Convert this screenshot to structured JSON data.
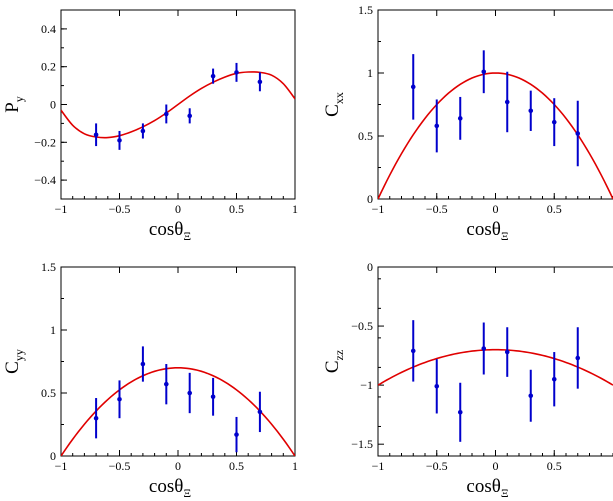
{
  "chart_data": [
    {
      "id": "py",
      "type": "scatter",
      "ylabel": "P",
      "ylabel_sub": "y",
      "xlabel": "cosθ",
      "xlabel_sub": "Ξ",
      "xlim": [
        -1,
        1
      ],
      "ylim": [
        -0.5,
        0.5
      ],
      "xticks": [
        -1,
        -0.5,
        0,
        0.5,
        1
      ],
      "xtick_labels": [
        "−1",
        "−0.5",
        "0",
        "0.5",
        "1"
      ],
      "yticks": [
        -0.4,
        -0.2,
        0,
        0.2,
        0.4
      ],
      "ytick_labels": [
        "−0.4",
        "−0.2",
        "0",
        "0.2",
        "0.4"
      ],
      "points": [
        {
          "x": -0.7,
          "y": -0.16,
          "err": 0.06
        },
        {
          "x": -0.5,
          "y": -0.19,
          "err": 0.05
        },
        {
          "x": -0.3,
          "y": -0.14,
          "err": 0.04
        },
        {
          "x": -0.1,
          "y": -0.05,
          "err": 0.05
        },
        {
          "x": 0.1,
          "y": -0.06,
          "err": 0.04
        },
        {
          "x": 0.3,
          "y": 0.15,
          "err": 0.04
        },
        {
          "x": 0.5,
          "y": 0.17,
          "err": 0.05
        },
        {
          "x": 0.7,
          "y": 0.12,
          "err": 0.05
        }
      ],
      "curve_samples": {
        "x": [
          -1,
          -0.9,
          -0.8,
          -0.7,
          -0.6,
          -0.5,
          -0.4,
          -0.3,
          -0.2,
          -0.1,
          0,
          0.1,
          0.2,
          0.3,
          0.4,
          0.5,
          0.6,
          0.7,
          0.8,
          0.9,
          1
        ],
        "y": [
          -0.03,
          -0.11,
          -0.155,
          -0.172,
          -0.175,
          -0.165,
          -0.145,
          -0.118,
          -0.085,
          -0.045,
          0,
          0.045,
          0.085,
          0.118,
          0.145,
          0.165,
          0.172,
          0.17,
          0.155,
          0.11,
          0.03
        ]
      }
    },
    {
      "id": "cxx",
      "type": "scatter",
      "ylabel": "C",
      "ylabel_sub": "xx",
      "xlabel": "cosθ",
      "xlabel_sub": "Ξ",
      "xlim": [
        -1,
        1
      ],
      "ylim": [
        0,
        1.5
      ],
      "xticks": [
        -1,
        -0.5,
        0,
        0.5
      ],
      "xtick_labels": [
        "−1",
        "−0.5",
        "0",
        "0.5"
      ],
      "yticks": [
        0,
        0.5,
        1,
        1.5
      ],
      "ytick_labels": [
        "0",
        "0.5",
        "1",
        "1.5"
      ],
      "points": [
        {
          "x": -0.7,
          "y": 0.89,
          "err": 0.26
        },
        {
          "x": -0.5,
          "y": 0.58,
          "err": 0.21
        },
        {
          "x": -0.3,
          "y": 0.64,
          "err": 0.17
        },
        {
          "x": -0.1,
          "y": 1.01,
          "err": 0.17
        },
        {
          "x": 0.1,
          "y": 0.77,
          "err": 0.24
        },
        {
          "x": 0.3,
          "y": 0.7,
          "err": 0.16
        },
        {
          "x": 0.5,
          "y": 0.61,
          "err": 0.19
        },
        {
          "x": 0.7,
          "y": 0.52,
          "err": 0.26
        }
      ],
      "curve": {
        "form": "a*(1-x^2)",
        "a": 1.0
      }
    },
    {
      "id": "cyy",
      "type": "scatter",
      "ylabel": "C",
      "ylabel_sub": "yy",
      "xlabel": "cosθ",
      "xlabel_sub": "Ξ",
      "xlim": [
        -1,
        1
      ],
      "ylim": [
        0,
        1.5
      ],
      "xticks": [
        -1,
        -0.5,
        0,
        0.5,
        1
      ],
      "xtick_labels": [
        "−1",
        "−0.5",
        "0",
        "0.5",
        "1"
      ],
      "yticks": [
        0,
        0.5,
        1,
        1.5
      ],
      "ytick_labels": [
        "0",
        "0.5",
        "1",
        "1.5"
      ],
      "points": [
        {
          "x": -0.7,
          "y": 0.3,
          "err": 0.16
        },
        {
          "x": -0.5,
          "y": 0.45,
          "err": 0.15
        },
        {
          "x": -0.3,
          "y": 0.73,
          "err": 0.14
        },
        {
          "x": -0.1,
          "y": 0.57,
          "err": 0.16
        },
        {
          "x": 0.1,
          "y": 0.5,
          "err": 0.16
        },
        {
          "x": 0.3,
          "y": 0.47,
          "err": 0.15
        },
        {
          "x": 0.5,
          "y": 0.17,
          "err": 0.14
        },
        {
          "x": 0.7,
          "y": 0.35,
          "err": 0.16
        }
      ],
      "curve": {
        "form": "a*(1-x^2)",
        "a": 0.7
      }
    },
    {
      "id": "czz",
      "type": "scatter",
      "ylabel": "C",
      "ylabel_sub": "zz",
      "xlabel": "cosθ",
      "xlabel_sub": "Ξ",
      "xlim": [
        -1,
        1
      ],
      "ylim": [
        -1.6,
        0
      ],
      "xticks": [
        -1,
        -0.5,
        0,
        0.5
      ],
      "xtick_labels": [
        "−1",
        "−0.5",
        "0",
        "0.5"
      ],
      "yticks": [
        -1.5,
        -1,
        -0.5,
        0
      ],
      "ytick_labels": [
        "−1.5",
        "−1",
        "−0.5",
        "0"
      ],
      "points": [
        {
          "x": -0.7,
          "y": -0.71,
          "err": 0.26
        },
        {
          "x": -0.5,
          "y": -1.01,
          "err": 0.23
        },
        {
          "x": -0.3,
          "y": -1.23,
          "err": 0.25
        },
        {
          "x": -0.1,
          "y": -0.69,
          "err": 0.22
        },
        {
          "x": 0.1,
          "y": -0.72,
          "err": 0.21
        },
        {
          "x": 0.3,
          "y": -1.09,
          "err": 0.22
        },
        {
          "x": 0.5,
          "y": -0.95,
          "err": 0.23
        },
        {
          "x": 0.7,
          "y": -0.77,
          "err": 0.26
        }
      ],
      "curve": {
        "form": "b - c*x^2",
        "b": -0.7,
        "c": 0.3
      }
    }
  ],
  "colors": {
    "curve": "#e00000",
    "points": "#0000cc",
    "axes": "#000000"
  }
}
